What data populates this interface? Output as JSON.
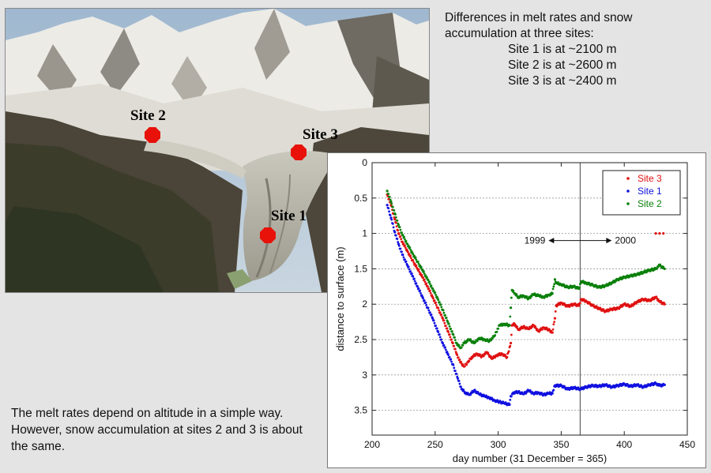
{
  "intro": {
    "line1": "Differences in melt rates and snow",
    "line2": "accumulation at three sites:",
    "sites": [
      "Site 1 is at ~2100 m",
      "Site 2 is at ~2600 m",
      "Site 3 is at ~2400 m"
    ]
  },
  "photo": {
    "labels": [
      "Site 2",
      "Site 3",
      "Site 1"
    ],
    "marker_color": "#e8120a"
  },
  "note": "The melt rates depend on altitude in a simple way. However, snow accumulation at sites 2 and 3 is about the same.",
  "chart_data": {
    "type": "scatter",
    "xlabel": "day number (31 December = 365)",
    "ylabel": "distance to surface (m)",
    "xlim": [
      200,
      450
    ],
    "ylim": [
      0,
      3.85
    ],
    "y_inverted": true,
    "xticks": [
      200,
      250,
      300,
      350,
      400,
      450
    ],
    "yticks": [
      0,
      0.5,
      1,
      1.5,
      2,
      2.5,
      3,
      3.5
    ],
    "ytick_labels": [
      "0",
      "0.5",
      "1",
      "1.5",
      "2",
      "2.5",
      "3",
      "3.5"
    ],
    "grid": "horizontal",
    "legend_position": "top-right",
    "year_divider": {
      "x": 365,
      "left_label": "1999",
      "right_label": "2000"
    },
    "series": [
      {
        "name": "Site 3",
        "color": "#e01010",
        "points": [
          [
            212,
            0.45
          ],
          [
            215,
            0.6
          ],
          [
            218,
            0.8
          ],
          [
            221,
            1.0
          ],
          [
            224,
            1.12
          ],
          [
            228,
            1.25
          ],
          [
            232,
            1.38
          ],
          [
            236,
            1.5
          ],
          [
            240,
            1.62
          ],
          [
            244,
            1.75
          ],
          [
            248,
            1.9
          ],
          [
            252,
            2.05
          ],
          [
            256,
            2.2
          ],
          [
            260,
            2.38
          ],
          [
            264,
            2.55
          ],
          [
            267,
            2.7
          ],
          [
            270,
            2.82
          ],
          [
            273,
            2.88
          ],
          [
            276,
            2.82
          ],
          [
            279,
            2.75
          ],
          [
            283,
            2.7
          ],
          [
            287,
            2.74
          ],
          [
            291,
            2.68
          ],
          [
            295,
            2.77
          ],
          [
            299,
            2.72
          ],
          [
            303,
            2.7
          ],
          [
            307,
            2.75
          ],
          [
            310,
            2.55
          ],
          [
            311,
            2.3
          ],
          [
            313,
            2.28
          ],
          [
            316,
            2.36
          ],
          [
            320,
            2.32
          ],
          [
            324,
            2.35
          ],
          [
            328,
            2.3
          ],
          [
            332,
            2.38
          ],
          [
            336,
            2.33
          ],
          [
            340,
            2.36
          ],
          [
            343,
            2.4
          ],
          [
            345,
            2.2
          ],
          [
            346,
            2.02
          ],
          [
            350,
            1.98
          ],
          [
            355,
            2.03
          ],
          [
            360,
            2.0
          ],
          [
            364,
            2.02
          ],
          [
            366,
            1.93
          ],
          [
            370,
            1.96
          ],
          [
            375,
            2.02
          ],
          [
            380,
            2.06
          ],
          [
            385,
            2.1
          ],
          [
            390,
            2.07
          ],
          [
            395,
            2.06
          ],
          [
            400,
            2.0
          ],
          [
            405,
            2.03
          ],
          [
            410,
            1.97
          ],
          [
            415,
            1.93
          ],
          [
            420,
            1.95
          ],
          [
            425,
            1.9
          ],
          [
            428,
            1.96
          ],
          [
            432,
            2.0
          ]
        ],
        "outliers": [
          [
            425,
            1.0
          ],
          [
            428,
            1.0
          ],
          [
            431,
            1.0
          ]
        ]
      },
      {
        "name": "Site 1",
        "color": "#1010e0",
        "points": [
          [
            212,
            0.6
          ],
          [
            215,
            0.78
          ],
          [
            218,
            0.98
          ],
          [
            221,
            1.15
          ],
          [
            224,
            1.3
          ],
          [
            228,
            1.45
          ],
          [
            232,
            1.6
          ],
          [
            236,
            1.75
          ],
          [
            240,
            1.9
          ],
          [
            244,
            2.05
          ],
          [
            248,
            2.2
          ],
          [
            252,
            2.38
          ],
          [
            256,
            2.55
          ],
          [
            260,
            2.7
          ],
          [
            264,
            2.85
          ],
          [
            268,
            3.05
          ],
          [
            271,
            3.2
          ],
          [
            274,
            3.25
          ],
          [
            277,
            3.28
          ],
          [
            281,
            3.22
          ],
          [
            285,
            3.27
          ],
          [
            289,
            3.3
          ],
          [
            293,
            3.32
          ],
          [
            297,
            3.36
          ],
          [
            301,
            3.38
          ],
          [
            305,
            3.4
          ],
          [
            309,
            3.42
          ],
          [
            310,
            3.3
          ],
          [
            312,
            3.25
          ],
          [
            316,
            3.24
          ],
          [
            320,
            3.27
          ],
          [
            324,
            3.22
          ],
          [
            328,
            3.26
          ],
          [
            332,
            3.25
          ],
          [
            336,
            3.28
          ],
          [
            340,
            3.26
          ],
          [
            343,
            3.26
          ],
          [
            345,
            3.15
          ],
          [
            350,
            3.15
          ],
          [
            355,
            3.2
          ],
          [
            360,
            3.18
          ],
          [
            365,
            3.2
          ],
          [
            370,
            3.17
          ],
          [
            375,
            3.15
          ],
          [
            380,
            3.16
          ],
          [
            385,
            3.14
          ],
          [
            390,
            3.17
          ],
          [
            395,
            3.15
          ],
          [
            400,
            3.13
          ],
          [
            405,
            3.16
          ],
          [
            410,
            3.14
          ],
          [
            415,
            3.17
          ],
          [
            420,
            3.14
          ],
          [
            425,
            3.12
          ],
          [
            428,
            3.15
          ],
          [
            432,
            3.14
          ]
        ],
        "outliers": []
      },
      {
        "name": "Site 2",
        "color": "#0a800a",
        "points": [
          [
            212,
            0.4
          ],
          [
            215,
            0.55
          ],
          [
            218,
            0.72
          ],
          [
            221,
            0.88
          ],
          [
            224,
            1.02
          ],
          [
            228,
            1.15
          ],
          [
            232,
            1.28
          ],
          [
            236,
            1.4
          ],
          [
            240,
            1.52
          ],
          [
            244,
            1.65
          ],
          [
            248,
            1.78
          ],
          [
            252,
            1.92
          ],
          [
            256,
            2.08
          ],
          [
            260,
            2.25
          ],
          [
            264,
            2.42
          ],
          [
            267,
            2.55
          ],
          [
            270,
            2.62
          ],
          [
            273,
            2.55
          ],
          [
            277,
            2.5
          ],
          [
            281,
            2.55
          ],
          [
            285,
            2.48
          ],
          [
            289,
            2.5
          ],
          [
            293,
            2.52
          ],
          [
            297,
            2.45
          ],
          [
            301,
            2.3
          ],
          [
            305,
            2.28
          ],
          [
            309,
            2.3
          ],
          [
            310,
            2.05
          ],
          [
            311,
            1.8
          ],
          [
            313,
            1.85
          ],
          [
            316,
            1.9
          ],
          [
            320,
            1.88
          ],
          [
            324,
            1.92
          ],
          [
            328,
            1.86
          ],
          [
            332,
            1.88
          ],
          [
            336,
            1.9
          ],
          [
            340,
            1.87
          ],
          [
            343,
            1.85
          ],
          [
            345,
            1.65
          ],
          [
            346,
            1.7
          ],
          [
            350,
            1.72
          ],
          [
            355,
            1.76
          ],
          [
            360,
            1.75
          ],
          [
            364,
            1.78
          ],
          [
            366,
            1.68
          ],
          [
            370,
            1.7
          ],
          [
            375,
            1.73
          ],
          [
            380,
            1.76
          ],
          [
            385,
            1.74
          ],
          [
            390,
            1.7
          ],
          [
            395,
            1.65
          ],
          [
            400,
            1.62
          ],
          [
            405,
            1.6
          ],
          [
            410,
            1.58
          ],
          [
            415,
            1.55
          ],
          [
            420,
            1.52
          ],
          [
            425,
            1.5
          ],
          [
            428,
            1.45
          ],
          [
            432,
            1.5
          ]
        ],
        "outliers": []
      }
    ]
  }
}
